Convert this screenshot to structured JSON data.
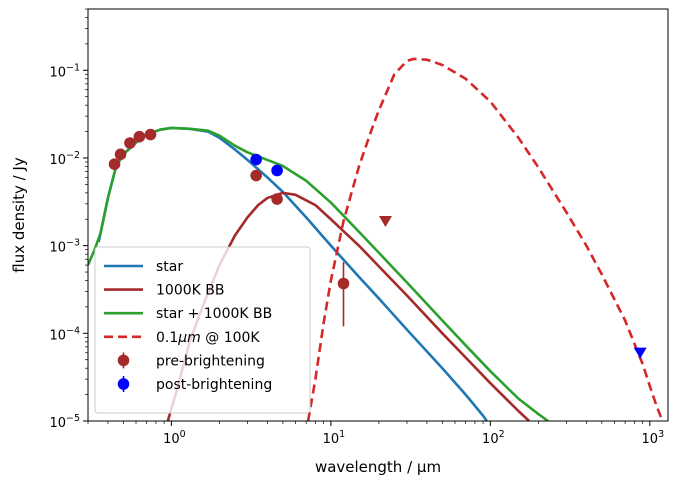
{
  "chart_data": {
    "type": "line",
    "xscale": "log",
    "yscale": "log",
    "xlim": [
      0.3,
      1300
    ],
    "ylim": [
      1e-05,
      0.5
    ],
    "xlabel": "wavelength / μm",
    "ylabel": "flux density / Jy",
    "xticks": [
      {
        "value": 1,
        "label": "10",
        "exp": "0"
      },
      {
        "value": 10,
        "label": "10",
        "exp": "1"
      },
      {
        "value": 100,
        "label": "10",
        "exp": "2"
      },
      {
        "value": 1000,
        "label": "10",
        "exp": "3"
      }
    ],
    "yticks": [
      {
        "value": 1e-05,
        "label": "10",
        "exp": "−5"
      },
      {
        "value": 0.0001,
        "label": "10",
        "exp": "−4"
      },
      {
        "value": 0.001,
        "label": "10",
        "exp": "−3"
      },
      {
        "value": 0.01,
        "label": "10",
        "exp": "−2"
      },
      {
        "value": 0.1,
        "label": "10",
        "exp": "−1"
      }
    ],
    "legend_position": "lower-left",
    "series": [
      {
        "name": "star",
        "color": "#1f77b4",
        "style": "solid",
        "points": [
          [
            0.35,
            0.0011
          ],
          [
            0.4,
            0.0035
          ],
          [
            0.45,
            0.008
          ],
          [
            0.5,
            0.011
          ],
          [
            0.6,
            0.015
          ],
          [
            0.7,
            0.0185
          ],
          [
            0.85,
            0.021
          ],
          [
            1.0,
            0.022
          ],
          [
            1.3,
            0.0215
          ],
          [
            1.7,
            0.02
          ],
          [
            2.0,
            0.017
          ],
          [
            2.5,
            0.0125
          ],
          [
            3.0,
            0.0095
          ],
          [
            4.0,
            0.006
          ],
          [
            5.0,
            0.0041
          ],
          [
            7.0,
            0.0021
          ],
          [
            10.0,
            0.001
          ],
          [
            15.0,
            0.00044
          ],
          [
            20.0,
            0.00025
          ],
          [
            30.0,
            0.00011
          ],
          [
            50.0,
            4e-05
          ],
          [
            70.0,
            2e-05
          ],
          [
            90.0,
            1.15e-05
          ],
          [
            95.0,
            1e-05
          ]
        ]
      },
      {
        "name": "1000K BB",
        "color": "#a52a2a",
        "style": "solid",
        "points": [
          [
            0.95,
            1e-05
          ],
          [
            1.1,
            2.5e-05
          ],
          [
            1.3,
            8e-05
          ],
          [
            1.6,
            0.00022
          ],
          [
            2.0,
            0.0006
          ],
          [
            2.5,
            0.0013
          ],
          [
            3.0,
            0.0021
          ],
          [
            3.5,
            0.0029
          ],
          [
            4.0,
            0.0035
          ],
          [
            5.0,
            0.004
          ],
          [
            6.0,
            0.0038
          ],
          [
            8.0,
            0.0029
          ],
          [
            10.0,
            0.002
          ],
          [
            15.0,
            0.001
          ],
          [
            20.0,
            0.00058
          ],
          [
            30.0,
            0.00027
          ],
          [
            50.0,
            0.0001
          ],
          [
            70.0,
            5.3e-05
          ],
          [
            100.0,
            2.7e-05
          ],
          [
            150.0,
            1.3e-05
          ],
          [
            175.0,
            1e-05
          ]
        ]
      },
      {
        "name": "star + 1000K BB",
        "color": "#2ca02c",
        "style": "solid",
        "points": [
          [
            0.3,
            0.0006
          ],
          [
            0.33,
            0.0009
          ],
          [
            0.36,
            0.0014
          ],
          [
            0.4,
            0.0035
          ],
          [
            0.45,
            0.008
          ],
          [
            0.5,
            0.011
          ],
          [
            0.6,
            0.015
          ],
          [
            0.7,
            0.0185
          ],
          [
            0.85,
            0.021
          ],
          [
            1.0,
            0.022
          ],
          [
            1.3,
            0.0215
          ],
          [
            1.7,
            0.0205
          ],
          [
            2.0,
            0.018
          ],
          [
            2.5,
            0.0138
          ],
          [
            3.0,
            0.0116
          ],
          [
            4.0,
            0.0095
          ],
          [
            5.0,
            0.0081
          ],
          [
            7.0,
            0.0055
          ],
          [
            10.0,
            0.0031
          ],
          [
            15.0,
            0.00144
          ],
          [
            20.0,
            0.00083
          ],
          [
            30.0,
            0.00038
          ],
          [
            50.0,
            0.00014
          ],
          [
            70.0,
            7.3e-05
          ],
          [
            100.0,
            3.7e-05
          ],
          [
            150.0,
            1.8e-05
          ],
          [
            200.0,
            1.2e-05
          ],
          [
            230.0,
            1e-05
          ]
        ]
      },
      {
        "name": "0.1μm @ 100K",
        "label_parts": [
          "0.1",
          "μm",
          " @ 100K"
        ],
        "color": "#d62728",
        "style": "dashed",
        "points": [
          [
            7.2,
            1e-05
          ],
          [
            8.0,
            3e-05
          ],
          [
            9.0,
            0.00013
          ],
          [
            10.0,
            0.0004
          ],
          [
            12.0,
            0.0019
          ],
          [
            15.0,
            0.008
          ],
          [
            18.0,
            0.021
          ],
          [
            20.0,
            0.035
          ],
          [
            25.0,
            0.09
          ],
          [
            30.0,
            0.128
          ],
          [
            33.0,
            0.135
          ],
          [
            40.0,
            0.132
          ],
          [
            50.0,
            0.115
          ],
          [
            70.0,
            0.08
          ],
          [
            100.0,
            0.044
          ],
          [
            150.0,
            0.017
          ],
          [
            200.0,
            0.0078
          ],
          [
            300.0,
            0.0024
          ],
          [
            400.0,
            0.001
          ],
          [
            500.0,
            0.00047
          ],
          [
            700.0,
            0.00014
          ],
          [
            900.0,
            4.5e-05
          ],
          [
            1000.0,
            2.5e-05
          ],
          [
            1100.0,
            1.5e-05
          ],
          [
            1200.0,
            1e-05
          ]
        ]
      }
    ],
    "points": [
      {
        "name": "pre-brightening",
        "color": "#a52a2a",
        "marker": "circle",
        "data": [
          {
            "x": 0.44,
            "y": 0.0085
          },
          {
            "x": 0.48,
            "y": 0.011
          },
          {
            "x": 0.55,
            "y": 0.0148
          },
          {
            "x": 0.63,
            "y": 0.0175
          },
          {
            "x": 0.74,
            "y": 0.0185
          },
          {
            "x": 3.4,
            "y": 0.0063
          },
          {
            "x": 4.6,
            "y": 0.0034
          },
          {
            "x": 12.0,
            "y": 0.00037,
            "yerr_low": 0.00012,
            "yerr_high": 0.00065
          }
        ]
      },
      {
        "name": "post-brightening",
        "color": "#0000ff",
        "marker": "circle",
        "data": [
          {
            "x": 3.4,
            "y": 0.0096
          },
          {
            "x": 4.6,
            "y": 0.0072
          }
        ]
      }
    ],
    "upper_limits": [
      {
        "x": 22.0,
        "y": 0.0019,
        "color": "#a52a2a",
        "marker": "triangle-down"
      },
      {
        "x": 870.0,
        "y": 6e-05,
        "color": "#0000ff",
        "marker": "triangle-down"
      }
    ]
  }
}
